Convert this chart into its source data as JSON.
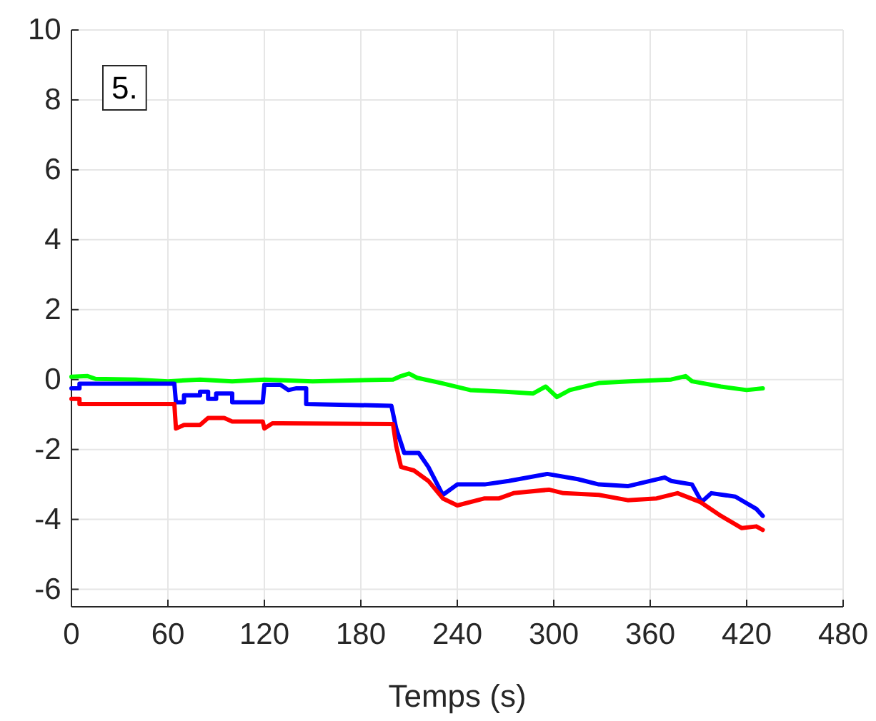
{
  "chart_data": {
    "type": "line",
    "xlabel": "Temps (s)",
    "annotations": [
      "5."
    ],
    "xlim": [
      0,
      480
    ],
    "ylim": [
      -6.5,
      10
    ],
    "xticks": [
      0,
      60,
      120,
      180,
      240,
      300,
      360,
      420,
      480
    ],
    "yticks": [
      -6,
      -4,
      -2,
      0,
      2,
      4,
      6,
      8,
      10
    ],
    "grid": true,
    "line_style": "solid",
    "marker": "none",
    "series": [
      {
        "color": "#00ff00",
        "x": [
          0,
          10,
          15,
          40,
          60,
          80,
          100,
          120,
          150,
          200,
          205,
          210,
          215,
          230,
          248,
          270,
          287,
          295,
          302,
          310,
          328,
          347,
          373,
          382,
          386,
          404,
          420,
          430
        ],
        "values": [
          0.08,
          0.1,
          0.02,
          0,
          -0.05,
          0,
          -0.05,
          0,
          -0.05,
          0,
          0.1,
          0.17,
          0.05,
          -0.1,
          -0.3,
          -0.35,
          -0.4,
          -0.2,
          -0.5,
          -0.3,
          -0.1,
          -0.05,
          0,
          0.1,
          -0.05,
          -0.2,
          -0.3,
          -0.25
        ]
      },
      {
        "color": "#0000ff",
        "x": [
          0,
          5,
          5,
          64,
          65,
          70,
          70,
          80,
          80,
          85,
          85,
          90,
          90,
          100,
          100,
          119,
          120,
          130,
          135,
          140,
          146,
          146,
          199,
          202,
          207,
          216,
          222,
          231,
          240,
          257,
          272,
          296,
          315,
          328,
          346,
          369,
          373,
          386,
          392,
          398,
          413,
          426,
          430
        ],
        "values": [
          -0.25,
          -0.25,
          -0.12,
          -0.12,
          -0.65,
          -0.65,
          -0.45,
          -0.45,
          -0.35,
          -0.35,
          -0.55,
          -0.55,
          -0.4,
          -0.4,
          -0.65,
          -0.65,
          -0.15,
          -0.15,
          -0.3,
          -0.25,
          -0.25,
          -0.7,
          -0.75,
          -1.4,
          -2.1,
          -2.1,
          -2.5,
          -3.3,
          -3.0,
          -3.0,
          -2.9,
          -2.7,
          -2.85,
          -3.0,
          -3.05,
          -2.8,
          -2.9,
          -3.0,
          -3.5,
          -3.25,
          -3.35,
          -3.7,
          -3.9
        ]
      },
      {
        "color": "#ff0000",
        "x": [
          0,
          5,
          5,
          64,
          65,
          70,
          80,
          85,
          95,
          100,
          119,
          120,
          125,
          130,
          200,
          202,
          205,
          213,
          222,
          231,
          240,
          257,
          266,
          275,
          297,
          306,
          328,
          346,
          364,
          377,
          391,
          404,
          417,
          426,
          430
        ],
        "values": [
          -0.55,
          -0.55,
          -0.7,
          -0.7,
          -1.4,
          -1.3,
          -1.3,
          -1.1,
          -1.1,
          -1.2,
          -1.2,
          -1.4,
          -1.25,
          -1.25,
          -1.27,
          -1.9,
          -2.5,
          -2.6,
          -2.9,
          -3.4,
          -3.6,
          -3.4,
          -3.4,
          -3.25,
          -3.15,
          -3.25,
          -3.3,
          -3.45,
          -3.4,
          -3.25,
          -3.5,
          -3.9,
          -4.25,
          -4.2,
          -4.3
        ]
      }
    ]
  }
}
